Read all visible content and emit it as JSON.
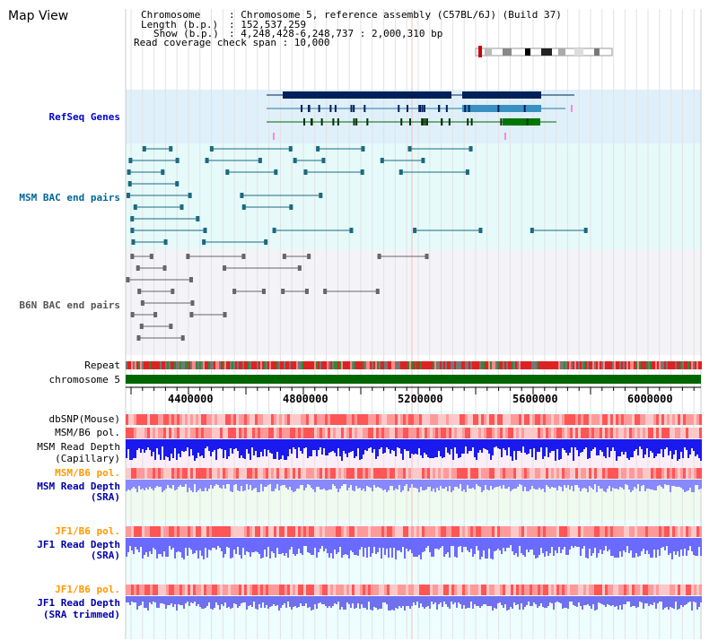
{
  "title": "Map View",
  "info": {
    "chromosome_key": "Chromosome",
    "chromosome_val": ": Chromosome 5, reference assembly (C57BL/6J) (Build 37)",
    "length_key": "Length (b.p.)",
    "length_val": ": 152,537,259",
    "show_key": "Show (b.p.)",
    "show_val": ": 4,248,428-6,248,737 : 2,000,310 bp",
    "coverage": "Read coverage check span : 10,000"
  },
  "tracks": {
    "refseq": "RefSeq Genes",
    "msm_bac": "MSM BAC end pairs",
    "b6n_bac": "B6N BAC end pairs",
    "repeat": "Repeat",
    "chromosome": "chromosome 5",
    "dbsnp": "dbSNP(Mouse)",
    "msm_b6_pol": "MSM/B6 pol.",
    "msm_depth_line1": "MSM Read Depth",
    "msm_depth_line2": "(Capillary)",
    "msm_b6_pol2": "MSM/B6 pol.",
    "msm_sra_line1": "MSM Read Depth",
    "msm_sra_line2": "(SRA)",
    "jf1_b6_pol": "JF1/B6 pol.",
    "jf1_depth_line1": "JF1 Read Depth",
    "jf1_depth_line2": "(SRA)",
    "jf1_b6_pol2": "JF1/B6 pol.",
    "jf1_trim_line1": "JF1 Read Depth",
    "jf1_trim_line2": "(SRA trimmed)"
  },
  "axis": {
    "ticks": [
      "4400000",
      "4800000",
      "5200000",
      "5600000",
      "6000000"
    ]
  },
  "colors": {
    "refseq_label": "#0000cc",
    "msm_label": "#006699",
    "b6n_label": "#555555",
    "pol_label": "#ff9900",
    "depth_label": "#0000aa",
    "chromosome_bar": "#006600",
    "panel_bg": "#eef6ff"
  }
}
